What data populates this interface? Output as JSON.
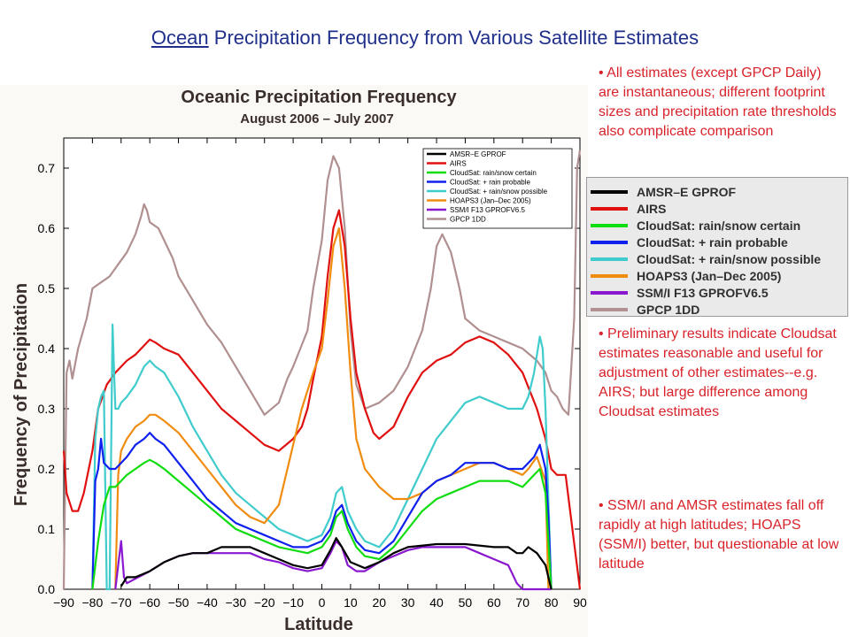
{
  "slide": {
    "title_link": "Ocean",
    "title_rest": " Precipitation Frequency from Various Satellite Estimates",
    "bullets": [
      "• All estimates (except GPCP Daily) are instantaneous; different footprint sizes and precipitation rate thresholds also complicate comparison",
      "• Preliminary results indicate Cloudsat estimates reasonable and useful for adjustment of other estimates--e.g. AIRS; but large difference among Cloudsat estimates",
      "• SSM/I and AMSR estimates fall off rapidly at high latitudes; HOAPS (SSM/I) better, but questionable at low latitude"
    ],
    "title_color": "#1f2f8a",
    "bullet_color": "#d8232a"
  },
  "chart_data": {
    "type": "line",
    "title": "Oceanic Precipitation Frequency",
    "subtitle": "August 2006 – July 2007",
    "xlabel": "Latitude",
    "ylabel": "Frequency of Precipitation",
    "xlim": [
      -90,
      90
    ],
    "ylim": [
      0,
      0.75
    ],
    "xticks": [
      -90,
      -80,
      -70,
      -60,
      -50,
      -40,
      -30,
      -20,
      -10,
      0,
      10,
      20,
      30,
      40,
      50,
      60,
      70,
      80,
      90
    ],
    "xtick_labels": [
      "−90",
      "−80",
      "−70",
      "−60",
      "−50",
      "−40",
      "−30",
      "−20",
      "−10",
      "0",
      "10",
      "20",
      "30",
      "40",
      "50",
      "60",
      "70",
      "80",
      "90"
    ],
    "yticks": [
      0,
      0.1,
      0.2,
      0.3,
      0.4,
      0.5,
      0.6,
      0.7
    ],
    "ytick_labels": [
      "0.0",
      "0.1",
      "0.2",
      "0.3",
      "0.4",
      "0.5",
      "0.6",
      "0.7"
    ],
    "grid": false,
    "legend_position": "top-right",
    "series": [
      {
        "name": "AMSR–E GPROF",
        "big_name": "AMSR–E GPROF",
        "color": "#000000",
        "x": [
          -70,
          -68,
          -65,
          -60,
          -55,
          -50,
          -45,
          -40,
          -35,
          -30,
          -25,
          -20,
          -15,
          -10,
          -5,
          0,
          3,
          5,
          7,
          10,
          15,
          20,
          25,
          30,
          40,
          50,
          60,
          65,
          68,
          70,
          72,
          75,
          78,
          80
        ],
        "y": [
          0.005,
          0.02,
          0.02,
          0.03,
          0.045,
          0.055,
          0.06,
          0.06,
          0.07,
          0.07,
          0.07,
          0.06,
          0.05,
          0.04,
          0.035,
          0.04,
          0.065,
          0.085,
          0.07,
          0.045,
          0.035,
          0.045,
          0.06,
          0.07,
          0.075,
          0.075,
          0.07,
          0.07,
          0.06,
          0.06,
          0.07,
          0.06,
          0.04,
          0.0
        ]
      },
      {
        "name": "AIRS",
        "big_name": "AIRS",
        "color": "#e01010",
        "x": [
          -90,
          -89,
          -87,
          -85,
          -83,
          -80,
          -78,
          -75,
          -72,
          -70,
          -68,
          -65,
          -62,
          -60,
          -58,
          -55,
          -50,
          -45,
          -40,
          -35,
          -30,
          -25,
          -20,
          -15,
          -10,
          -7,
          -5,
          -3,
          0,
          2,
          4,
          6,
          8,
          10,
          12,
          15,
          18,
          20,
          25,
          30,
          35,
          40,
          45,
          50,
          55,
          60,
          65,
          70,
          75,
          78,
          80,
          82,
          85,
          90
        ],
        "y": [
          0.23,
          0.16,
          0.13,
          0.13,
          0.16,
          0.23,
          0.3,
          0.34,
          0.36,
          0.37,
          0.38,
          0.39,
          0.405,
          0.415,
          0.41,
          0.4,
          0.39,
          0.36,
          0.33,
          0.3,
          0.28,
          0.26,
          0.24,
          0.23,
          0.25,
          0.27,
          0.3,
          0.35,
          0.42,
          0.52,
          0.6,
          0.63,
          0.57,
          0.45,
          0.36,
          0.3,
          0.26,
          0.25,
          0.27,
          0.32,
          0.36,
          0.38,
          0.39,
          0.41,
          0.42,
          0.41,
          0.39,
          0.36,
          0.3,
          0.25,
          0.2,
          0.19,
          0.19,
          0.0
        ]
      },
      {
        "name": "CloudSat: rain/snow certain",
        "big_name": "CloudSat: rain/snow certain",
        "color": "#10dd10",
        "x": [
          -80,
          -78,
          -76,
          -74,
          -72,
          -70,
          -68,
          -65,
          -62,
          -60,
          -58,
          -55,
          -50,
          -45,
          -40,
          -35,
          -30,
          -25,
          -20,
          -15,
          -10,
          -5,
          0,
          3,
          5,
          7,
          9,
          12,
          15,
          20,
          25,
          30,
          35,
          40,
          45,
          50,
          55,
          60,
          65,
          70,
          72,
          74,
          76,
          78,
          80
        ],
        "y": [
          0.0,
          0.08,
          0.14,
          0.17,
          0.17,
          0.18,
          0.19,
          0.2,
          0.21,
          0.215,
          0.21,
          0.2,
          0.18,
          0.16,
          0.14,
          0.12,
          0.1,
          0.09,
          0.08,
          0.07,
          0.065,
          0.06,
          0.07,
          0.09,
          0.12,
          0.13,
          0.1,
          0.07,
          0.055,
          0.05,
          0.07,
          0.1,
          0.13,
          0.15,
          0.16,
          0.17,
          0.18,
          0.18,
          0.18,
          0.17,
          0.18,
          0.19,
          0.2,
          0.16,
          0.0
        ]
      },
      {
        "name": "CloudSat: + rain probable",
        "big_name": "CloudSat: + rain probable",
        "color": "#1020ee",
        "x": [
          -80,
          -79,
          -78,
          -77,
          -76,
          -74,
          -72,
          -70,
          -68,
          -65,
          -62,
          -60,
          -58,
          -55,
          -50,
          -45,
          -40,
          -35,
          -30,
          -25,
          -20,
          -15,
          -10,
          -5,
          0,
          3,
          5,
          7,
          9,
          12,
          15,
          20,
          25,
          30,
          35,
          40,
          45,
          50,
          55,
          60,
          65,
          70,
          72,
          74,
          76,
          78,
          79,
          80
        ],
        "y": [
          0.0,
          0.18,
          0.2,
          0.25,
          0.21,
          0.2,
          0.2,
          0.21,
          0.22,
          0.24,
          0.25,
          0.26,
          0.25,
          0.24,
          0.21,
          0.18,
          0.15,
          0.13,
          0.11,
          0.1,
          0.09,
          0.08,
          0.07,
          0.07,
          0.08,
          0.1,
          0.13,
          0.14,
          0.11,
          0.08,
          0.065,
          0.06,
          0.08,
          0.12,
          0.16,
          0.18,
          0.19,
          0.21,
          0.21,
          0.21,
          0.2,
          0.2,
          0.21,
          0.22,
          0.24,
          0.2,
          0.12,
          0.0
        ]
      },
      {
        "name": "CloudSat: + rain/snow possible",
        "big_name": "CloudSat: + rain/snow possible",
        "color": "#40cccc",
        "x": [
          -80,
          -79,
          -78,
          -77,
          -76,
          -75,
          -74,
          -73,
          -72,
          -71,
          -70,
          -68,
          -65,
          -62,
          -60,
          -58,
          -55,
          -50,
          -45,
          -40,
          -35,
          -30,
          -25,
          -20,
          -15,
          -10,
          -5,
          0,
          3,
          5,
          7,
          9,
          12,
          15,
          20,
          25,
          30,
          35,
          40,
          45,
          50,
          55,
          60,
          65,
          70,
          72,
          74,
          76,
          77,
          78,
          80
        ],
        "y": [
          0.0,
          0.25,
          0.3,
          0.32,
          0.33,
          0.0,
          0.0,
          0.44,
          0.3,
          0.3,
          0.31,
          0.32,
          0.34,
          0.37,
          0.38,
          0.37,
          0.36,
          0.32,
          0.27,
          0.23,
          0.19,
          0.16,
          0.14,
          0.12,
          0.1,
          0.09,
          0.08,
          0.09,
          0.12,
          0.16,
          0.17,
          0.13,
          0.1,
          0.08,
          0.07,
          0.1,
          0.15,
          0.2,
          0.25,
          0.28,
          0.31,
          0.32,
          0.31,
          0.3,
          0.3,
          0.32,
          0.36,
          0.42,
          0.4,
          0.3,
          0.0
        ]
      },
      {
        "name": "HOAPS3 (Jan–Dec 2005)",
        "big_name": "HOAPS3 (Jan–Dec 2005)",
        "color": "#f08c10",
        "x": [
          -72,
          -71,
          -70,
          -68,
          -65,
          -62,
          -60,
          -58,
          -55,
          -50,
          -45,
          -40,
          -35,
          -30,
          -25,
          -20,
          -15,
          -10,
          -7,
          -5,
          -3,
          0,
          2,
          4,
          6,
          8,
          10,
          12,
          15,
          20,
          25,
          30,
          35,
          40,
          45,
          50,
          55,
          60,
          65,
          70,
          72,
          75,
          78,
          79
        ],
        "y": [
          0.0,
          0.19,
          0.23,
          0.25,
          0.27,
          0.28,
          0.29,
          0.29,
          0.28,
          0.26,
          0.23,
          0.2,
          0.17,
          0.14,
          0.12,
          0.11,
          0.14,
          0.24,
          0.3,
          0.33,
          0.36,
          0.4,
          0.48,
          0.57,
          0.6,
          0.5,
          0.36,
          0.25,
          0.2,
          0.17,
          0.15,
          0.15,
          0.16,
          0.18,
          0.19,
          0.2,
          0.21,
          0.21,
          0.2,
          0.19,
          0.2,
          0.22,
          0.18,
          0.0
        ]
      },
      {
        "name": "SSM/I F13 GPROFV6.5",
        "big_name": "SSM/I F13 GPROFV6.5",
        "color": "#8a18d0",
        "x": [
          -72,
          -71,
          -70,
          -69,
          -68,
          -66,
          -62,
          -60,
          -55,
          -50,
          -45,
          -40,
          -35,
          -30,
          -25,
          -20,
          -15,
          -10,
          -5,
          0,
          3,
          5,
          7,
          9,
          12,
          15,
          20,
          25,
          30,
          35,
          40,
          45,
          50,
          55,
          60,
          65,
          68,
          70,
          72,
          75,
          78,
          80
        ],
        "y": [
          0.0,
          0.04,
          0.08,
          0.02,
          0.01,
          0.015,
          0.025,
          0.03,
          0.045,
          0.055,
          0.06,
          0.06,
          0.06,
          0.06,
          0.06,
          0.05,
          0.045,
          0.035,
          0.03,
          0.035,
          0.06,
          0.08,
          0.07,
          0.04,
          0.03,
          0.03,
          0.045,
          0.055,
          0.065,
          0.07,
          0.07,
          0.07,
          0.07,
          0.06,
          0.05,
          0.04,
          0.01,
          0.0,
          0.0,
          0.0,
          0.0,
          0.0
        ]
      },
      {
        "name": "GPCP 1DD",
        "big_name": "GPCP 1DD",
        "color": "#b09090",
        "x": [
          -90,
          -89,
          -88,
          -87,
          -85,
          -82,
          -80,
          -77,
          -74,
          -71,
          -68,
          -65,
          -63,
          -62,
          -61,
          -60,
          -57,
          -55,
          -52,
          -50,
          -45,
          -40,
          -35,
          -30,
          -25,
          -20,
          -15,
          -12,
          -10,
          -5,
          -3,
          0,
          2,
          4,
          6,
          8,
          10,
          12,
          15,
          20,
          25,
          30,
          35,
          38,
          40,
          42,
          45,
          48,
          50,
          55,
          60,
          65,
          70,
          75,
          78,
          80,
          82,
          84,
          86,
          88,
          89,
          90
        ],
        "y": [
          0.0,
          0.36,
          0.38,
          0.35,
          0.4,
          0.45,
          0.5,
          0.51,
          0.52,
          0.54,
          0.56,
          0.59,
          0.62,
          0.64,
          0.63,
          0.61,
          0.6,
          0.58,
          0.55,
          0.52,
          0.48,
          0.44,
          0.41,
          0.37,
          0.33,
          0.29,
          0.31,
          0.35,
          0.37,
          0.43,
          0.5,
          0.58,
          0.68,
          0.72,
          0.7,
          0.6,
          0.43,
          0.34,
          0.3,
          0.31,
          0.33,
          0.37,
          0.43,
          0.5,
          0.57,
          0.59,
          0.56,
          0.5,
          0.45,
          0.43,
          0.42,
          0.41,
          0.4,
          0.38,
          0.36,
          0.33,
          0.32,
          0.3,
          0.29,
          0.45,
          0.7,
          0.73
        ]
      }
    ]
  }
}
